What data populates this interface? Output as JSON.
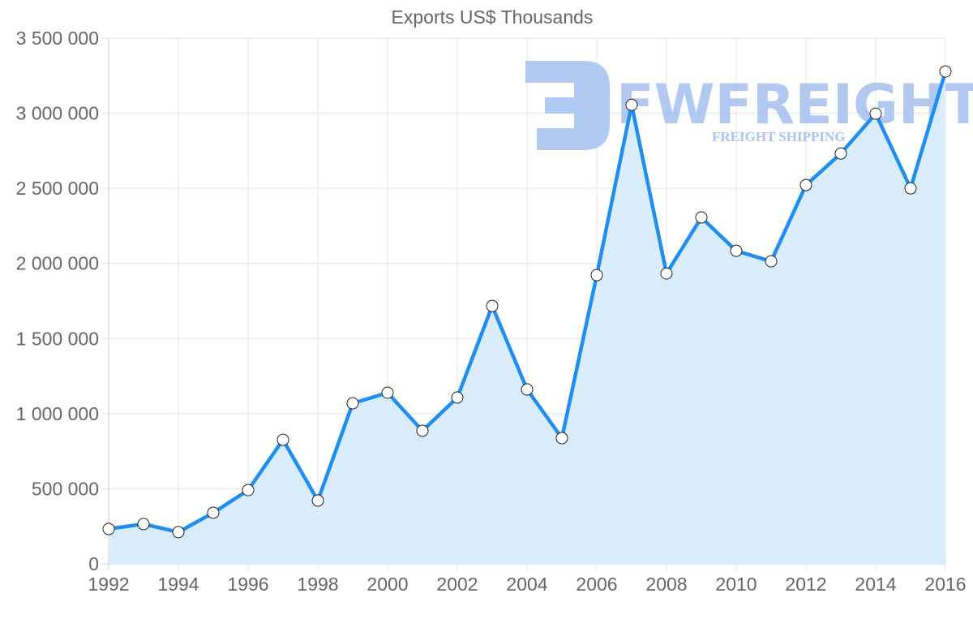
{
  "chart_data": {
    "type": "area",
    "title": "Exports US$ Thousands",
    "xlabel": "",
    "ylabel": "",
    "ylim": [
      0,
      3500000
    ],
    "grid": true,
    "legend": "none",
    "x": [
      1992,
      1993,
      1994,
      1995,
      1996,
      1997,
      1998,
      1999,
      2000,
      2001,
      2002,
      2003,
      2004,
      2005,
      2006,
      2007,
      2008,
      2009,
      2010,
      2011,
      2012,
      2013,
      2014,
      2015,
      2016
    ],
    "series": [
      {
        "name": "Exports",
        "values": [
          232000,
          265000,
          211000,
          340000,
          491000,
          826000,
          421000,
          1069000,
          1139000,
          886000,
          1107000,
          1717000,
          1161000,
          837000,
          1922000,
          3056000,
          1933000,
          2306000,
          2084000,
          2014000,
          2522000,
          2732000,
          2997000,
          2500000,
          3278000
        ],
        "line_color": "#1e8ff0",
        "fill_color": "#d7ebfc"
      }
    ],
    "y_tick_labels": [
      "0",
      "500 000",
      "1 000 000",
      "1 500 000",
      "2 000 000",
      "2 500 000",
      "3 000 000",
      "3 500 000"
    ],
    "y_tick_values": [
      0,
      500000,
      1000000,
      1500000,
      2000000,
      2500000,
      3000000,
      3500000
    ],
    "x_tick_labels": [
      "1992",
      "1994",
      "1996",
      "1998",
      "2000",
      "2002",
      "2004",
      "2006",
      "2008",
      "2010",
      "2012",
      "2014",
      "2016"
    ]
  },
  "watermark": {
    "brand": "FWFREIGHT",
    "tagline": "FREIGHT SHIPPING",
    "color": "#a9c4f0"
  }
}
